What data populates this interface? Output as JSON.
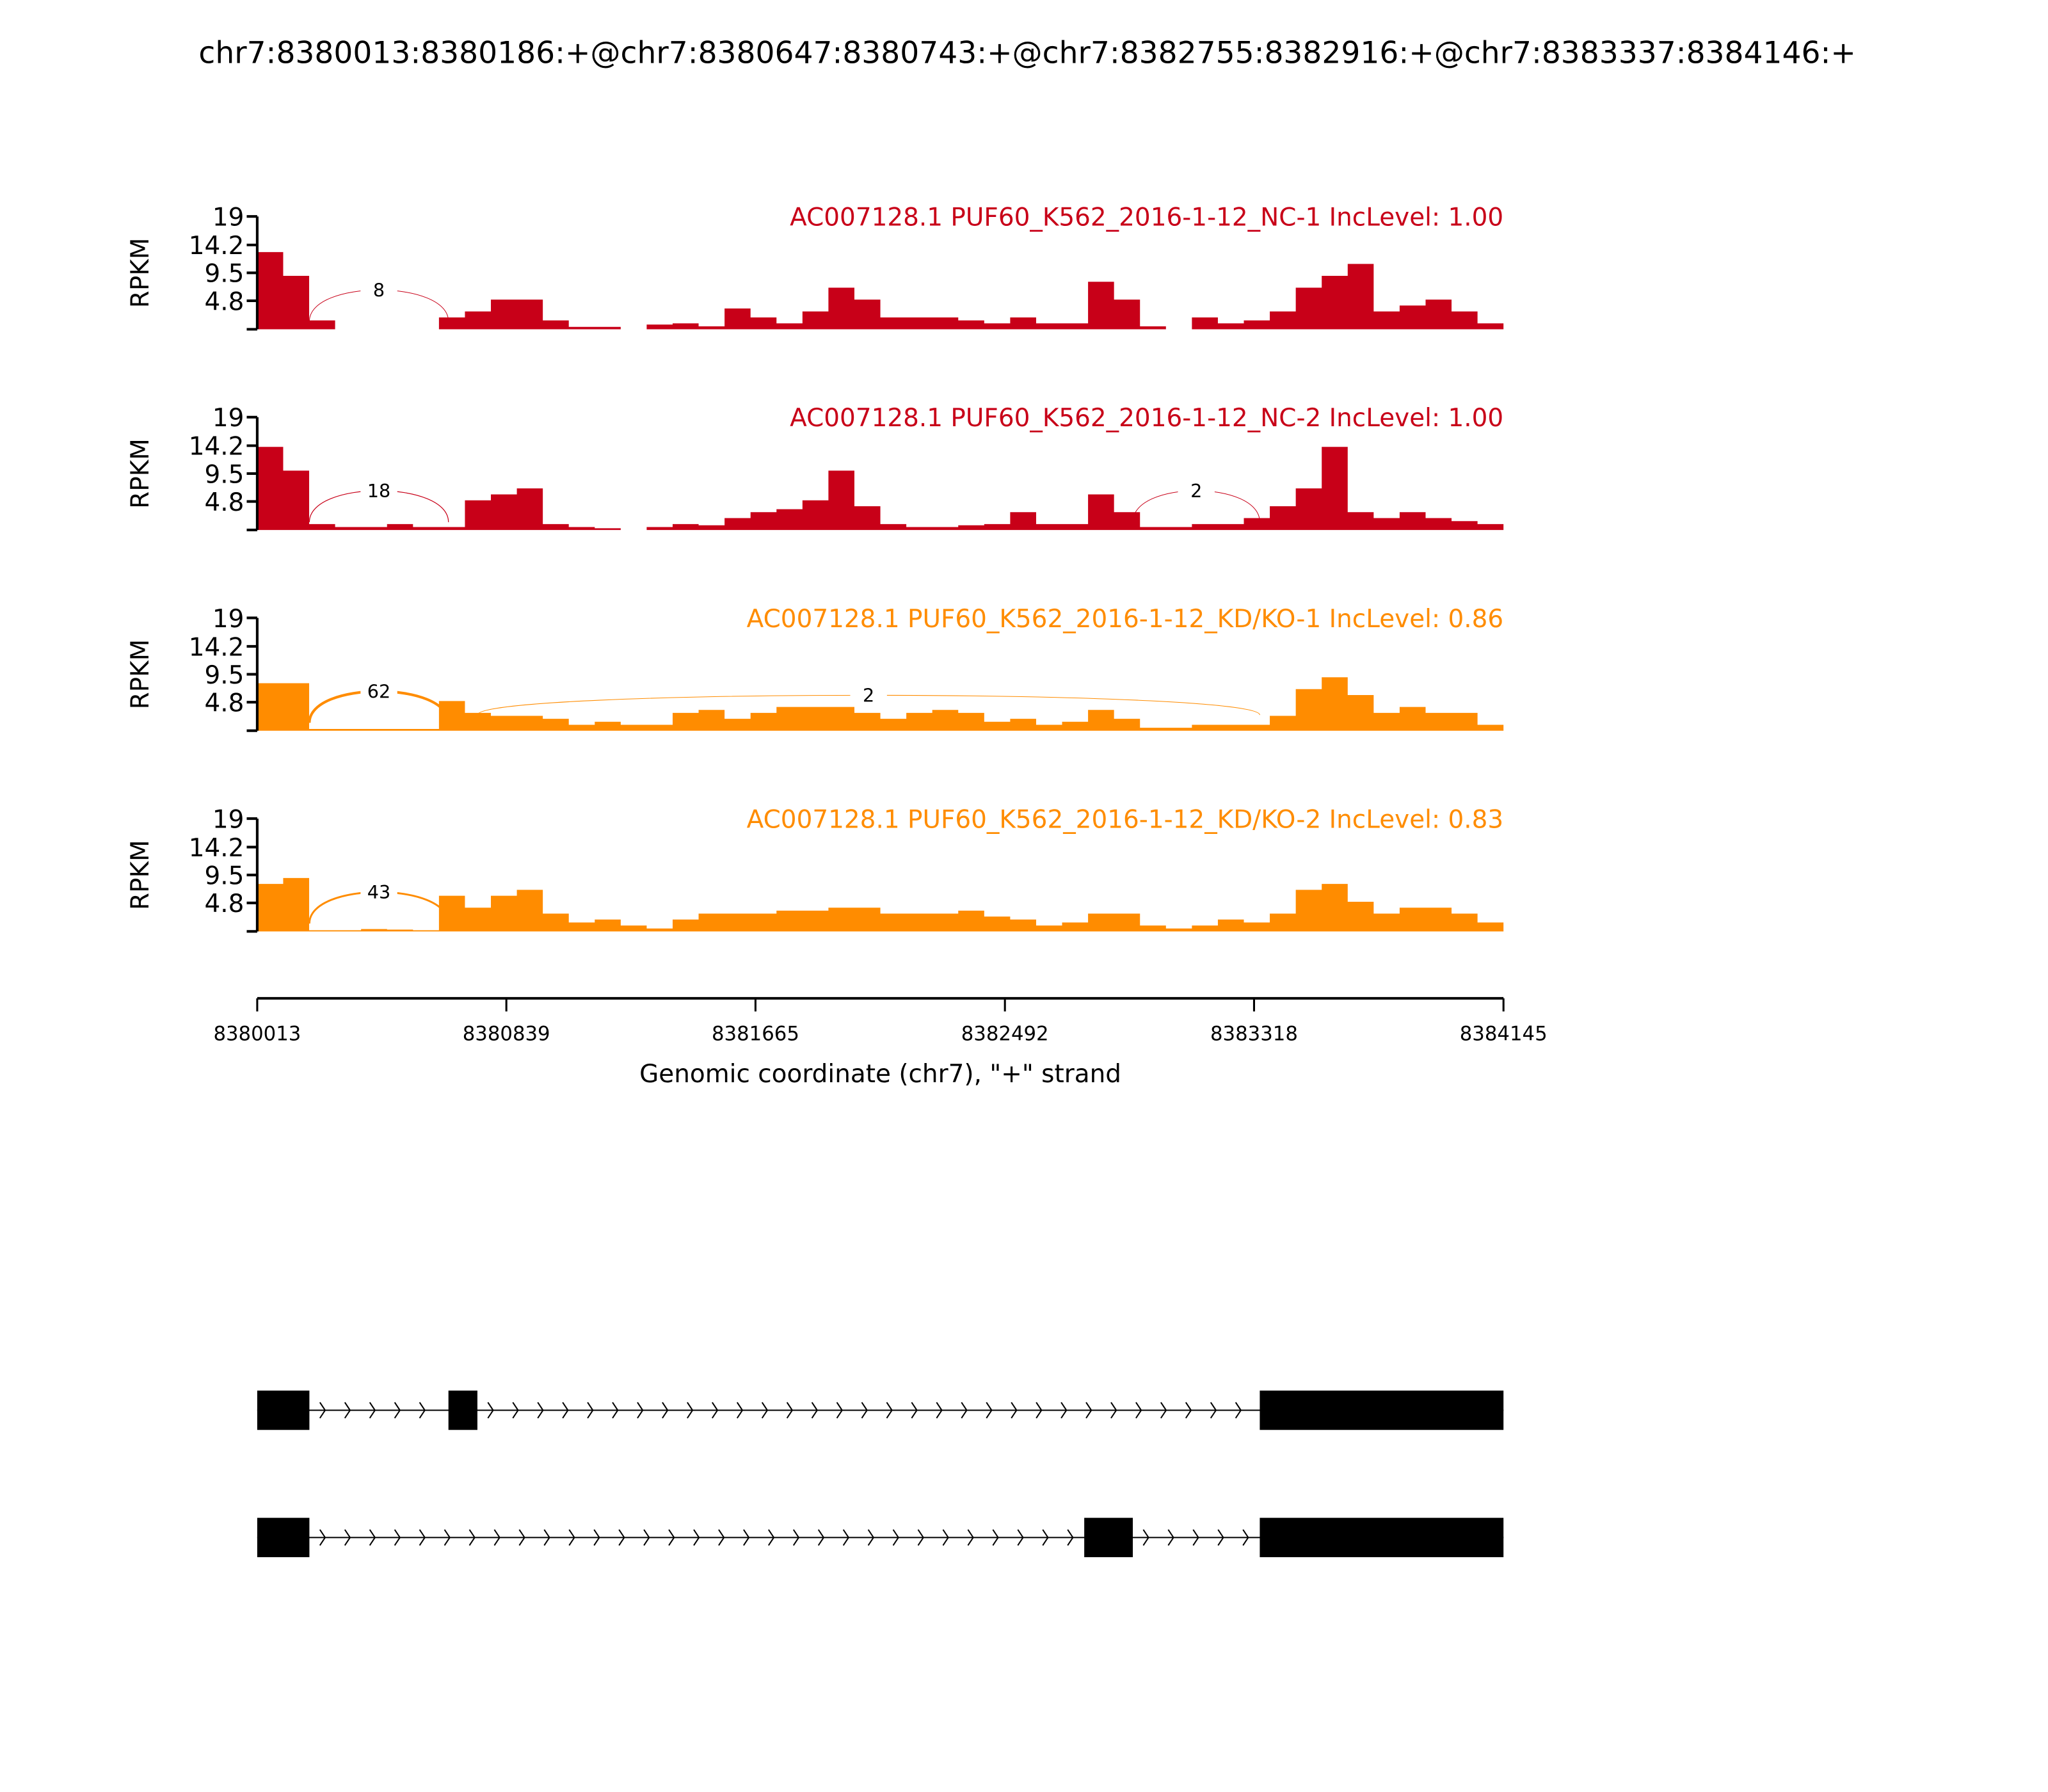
{
  "chart_data": {
    "type": "area",
    "title": "chr7:8380013:8380186:+@chr7:8380647:8380743:+@chr7:8382755:8382916:+@chr7:8383337:8384146:+",
    "xlabel": "Genomic coordinate (chr7), \"+\" strand",
    "ylabel": "RPKM",
    "xlim": [
      8380013,
      8384145
    ],
    "xticks": [
      "8380013",
      "8380839",
      "8381665",
      "8382492",
      "8383318",
      "8384145"
    ],
    "ylim": [
      0,
      19
    ],
    "yticks": [
      "19",
      "14.2",
      "9.5",
      "4.8"
    ],
    "bin_count": 48,
    "tracks": [
      {
        "label": "AC007128.1 PUF60_K562_2016-1-12_NC-1 IncLevel: 1.00",
        "color": "#c80018",
        "coverage": [
          13,
          9,
          1.5,
          0,
          0,
          0,
          0,
          2,
          3,
          5,
          5,
          1.5,
          0.4,
          0.4,
          0,
          0.8,
          1,
          0.5,
          3.5,
          2,
          1,
          3,
          7,
          5,
          2,
          2,
          2,
          1.5,
          1,
          2,
          1,
          1,
          8,
          5,
          0.5,
          0,
          2,
          1,
          1.5,
          3,
          7,
          9,
          11,
          3,
          4,
          5,
          3,
          1
        ],
        "junctions": [
          {
            "start": 8380186,
            "end": 8380647,
            "count": "8"
          }
        ]
      },
      {
        "label": "AC007128.1 PUF60_K562_2016-1-12_NC-2 IncLevel: 1.00",
        "color": "#c80018",
        "coverage": [
          14,
          10,
          1,
          0.5,
          0.5,
          1,
          0.5,
          0.5,
          5,
          6,
          7,
          1,
          0.5,
          0.3,
          0,
          0.5,
          1,
          0.8,
          2,
          3,
          3.5,
          5,
          10,
          4,
          1,
          0.5,
          0.5,
          0.8,
          1,
          3,
          1,
          1,
          6,
          3,
          0.5,
          0.5,
          1,
          1,
          2,
          4,
          7,
          14,
          3,
          2,
          3,
          2,
          1.5,
          1
        ],
        "junctions": [
          {
            "start": 8380186,
            "end": 8380647,
            "count": "18"
          },
          {
            "start": 8382916,
            "end": 8383337,
            "count": "2"
          }
        ]
      },
      {
        "label": "AC007128.1 PUF60_K562_2016-1-12_KD/KO-1 IncLevel: 0.86",
        "color": "#ff8c00",
        "coverage": [
          8,
          8,
          0.3,
          0.3,
          0.3,
          0.3,
          0.3,
          5,
          3,
          2.5,
          2.5,
          2,
          1,
          1.5,
          1,
          1,
          3,
          3.5,
          2,
          3,
          4,
          4,
          4,
          3,
          2,
          3,
          3.5,
          3,
          1.5,
          2,
          1,
          1.5,
          3.5,
          2,
          0.5,
          0.5,
          1,
          1,
          1,
          2.5,
          7,
          9,
          6,
          3,
          4,
          3,
          3,
          1
        ],
        "junctions": [
          {
            "start": 8380186,
            "end": 8380647,
            "count": "62"
          },
          {
            "start": 8380743,
            "end": 8383337,
            "count": "2"
          }
        ]
      },
      {
        "label": "AC007128.1 PUF60_K562_2016-1-12_KD/KO-2 IncLevel: 0.83",
        "color": "#ff8c00",
        "coverage": [
          8,
          9,
          0.2,
          0.2,
          0.4,
          0.3,
          0.2,
          6,
          4,
          6,
          7,
          3,
          1.5,
          2,
          1,
          0.5,
          2,
          3,
          3,
          3,
          3.5,
          3.5,
          4,
          4,
          3,
          3,
          3,
          3.5,
          2.5,
          2,
          1,
          1.5,
          3,
          3,
          1,
          0.5,
          1,
          2,
          1.5,
          3,
          7,
          8,
          5,
          3,
          4,
          4,
          3,
          1.5
        ],
        "junctions": [
          {
            "start": 8380186,
            "end": 8380647,
            "count": "43"
          }
        ]
      }
    ],
    "transcripts": [
      {
        "exons": [
          [
            8380013,
            8380186
          ],
          [
            8380647,
            8380743
          ],
          [
            8383337,
            8384146
          ]
        ]
      },
      {
        "exons": [
          [
            8380013,
            8380186
          ],
          [
            8382755,
            8382916
          ],
          [
            8383337,
            8384146
          ]
        ]
      }
    ]
  }
}
